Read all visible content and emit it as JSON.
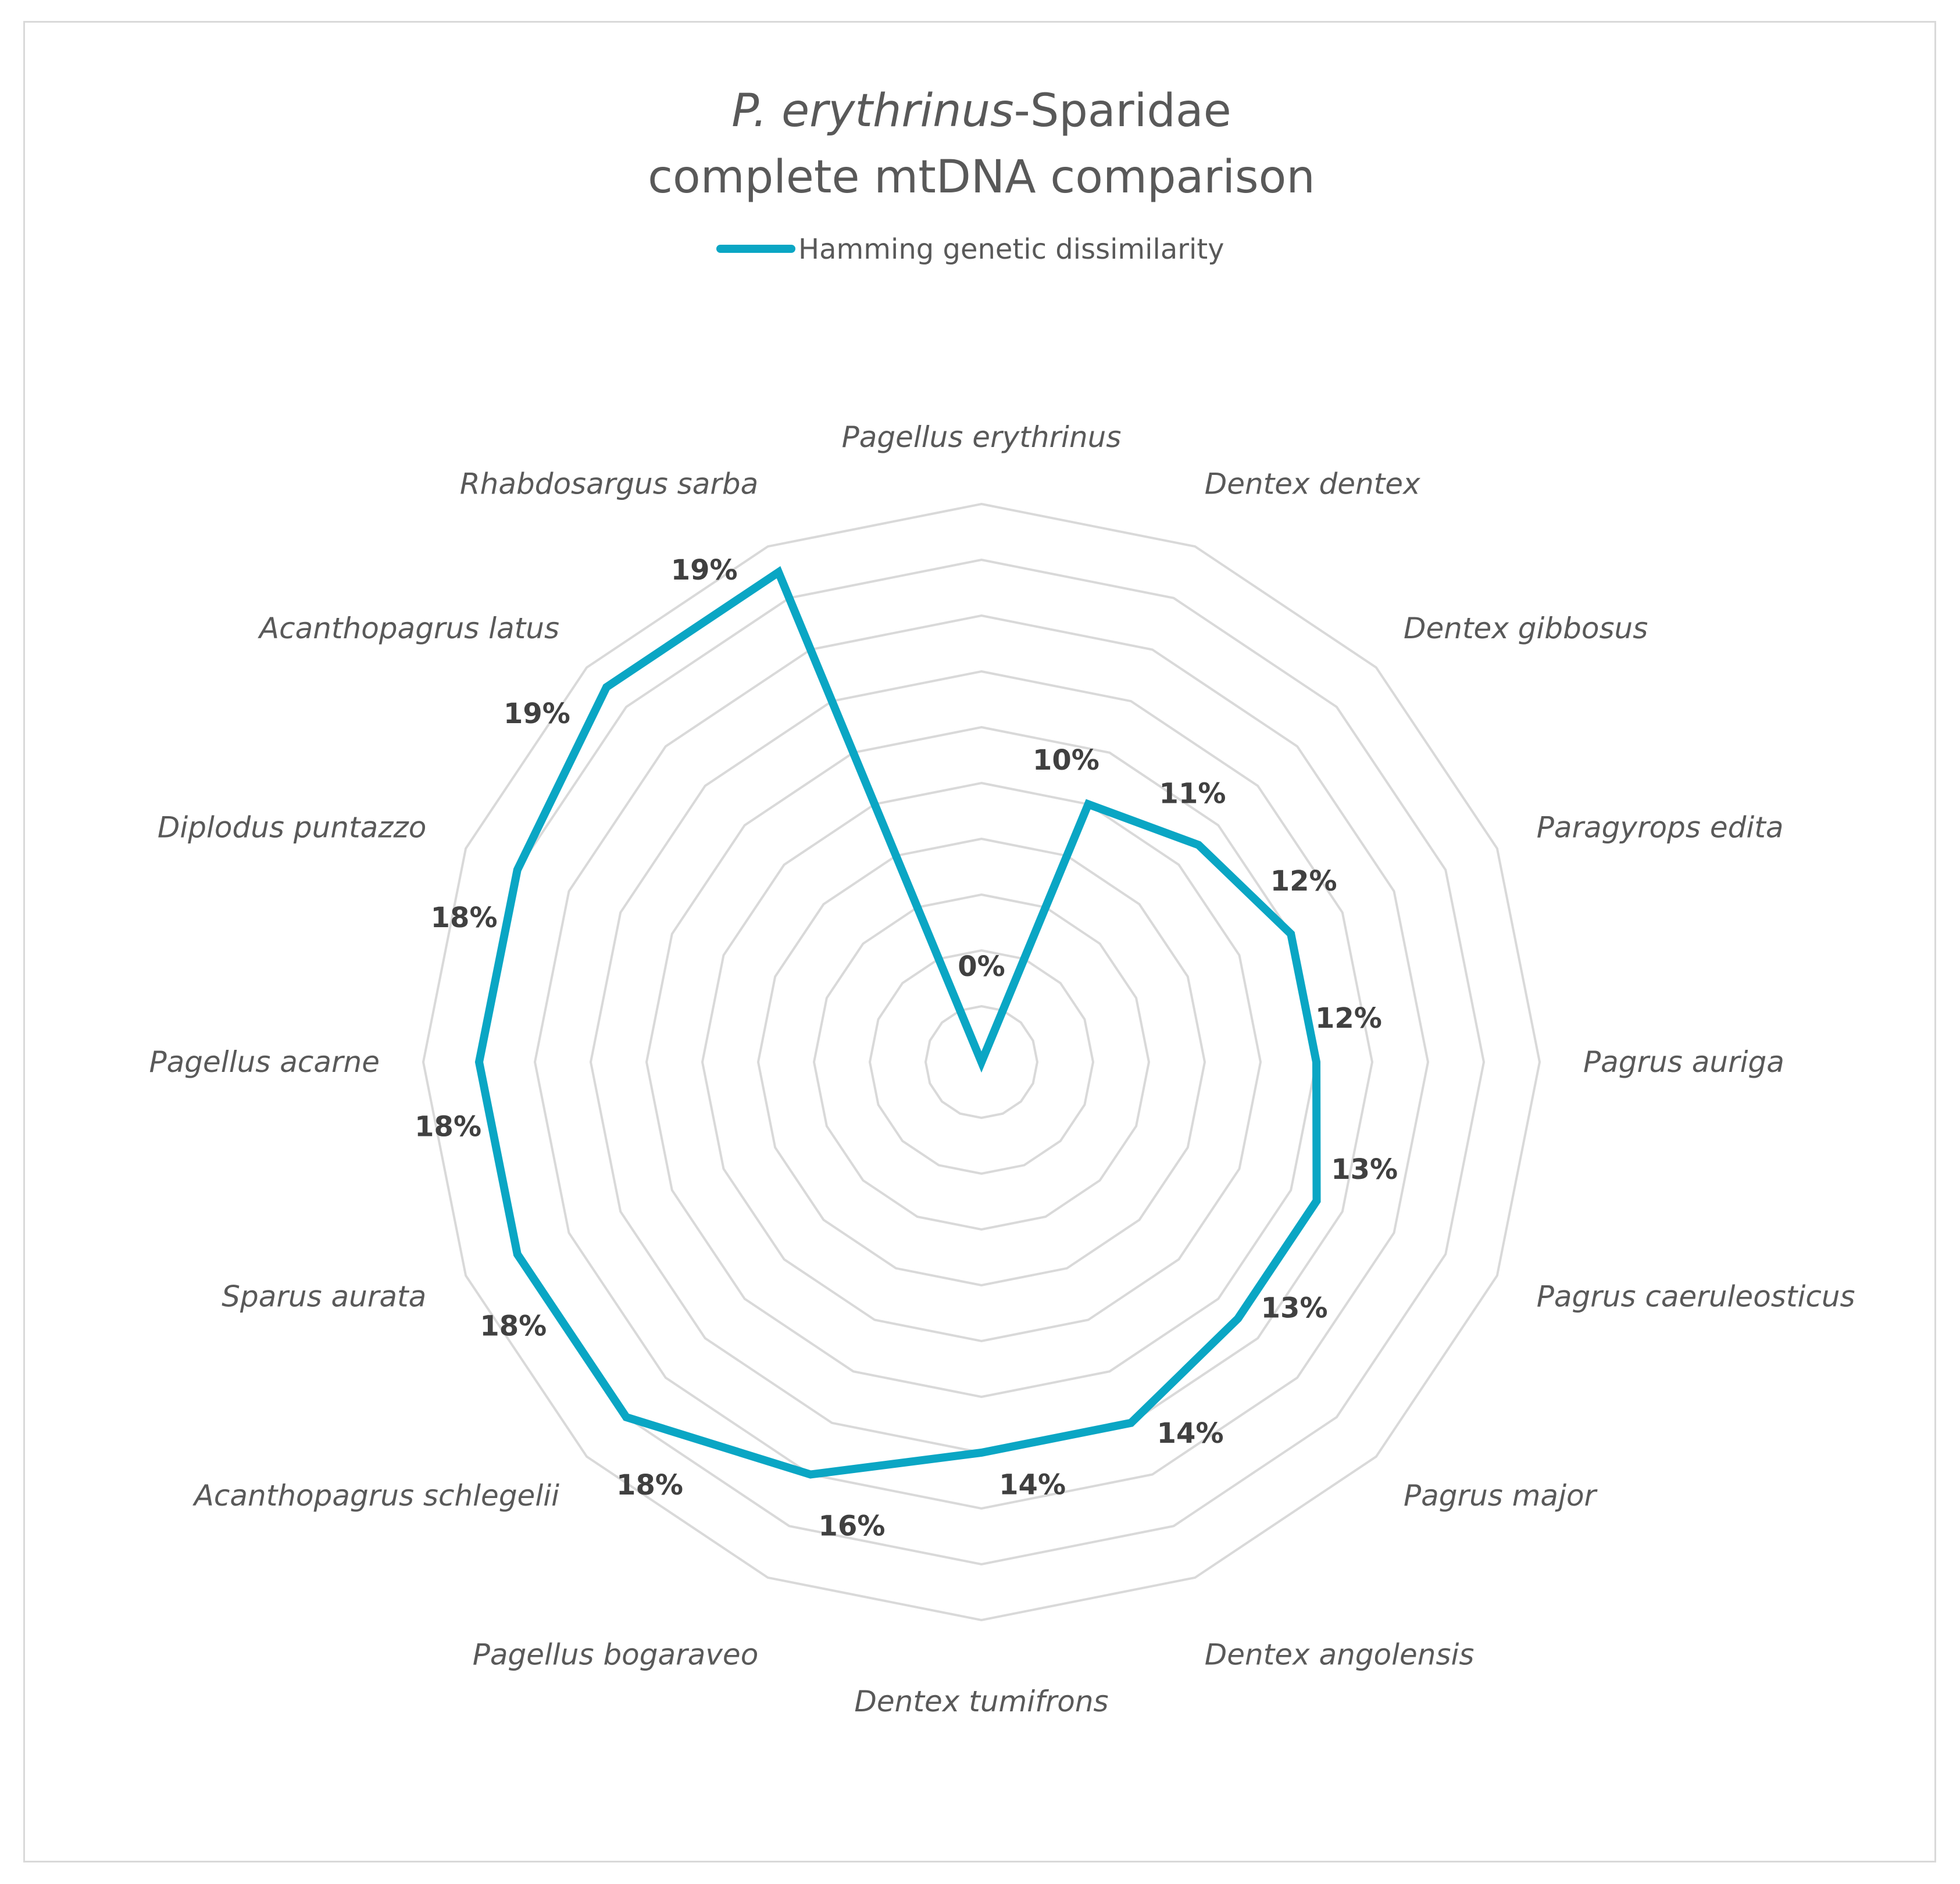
{
  "chart_data": {
    "type": "radar",
    "title_italic": "P. erythrinus",
    "title_rest": "-Sparidae",
    "title_line2": "complete mtDNA comparison",
    "legend": {
      "position": "top"
    },
    "series": [
      {
        "name": "Hamming genetic dissimilarity",
        "color": "#0aa6c4",
        "values": [
          0,
          10,
          11,
          12,
          12,
          13,
          13,
          14,
          14,
          16,
          18,
          18,
          18,
          18,
          19,
          19
        ],
        "labels": [
          "0%",
          "10%",
          "11%",
          "12%",
          "12%",
          "13%",
          "13%",
          "14%",
          "14%",
          "16%",
          "18%",
          "18%",
          "18%",
          "18%",
          "19%",
          "19%"
        ]
      }
    ],
    "categories": [
      "Pagellus erythrinus",
      "Dentex dentex",
      "Dentex gibbosus",
      "Paragyrops edita",
      "Pagrus auriga",
      "Pagrus caeruleosticus",
      "Pagrus major",
      "Dentex angolensis",
      "Dentex tumifrons",
      "Pagellus bogaraveo",
      "Acanthopagrus schlegelii",
      "Sparus aurata",
      "Pagellus acarne",
      "Diplodus puntazzo",
      "Acanthopagrus latus",
      "Rhabdosargus sarba"
    ],
    "rlim": [
      0,
      20
    ],
    "ring_step": 2,
    "grid": true
  }
}
